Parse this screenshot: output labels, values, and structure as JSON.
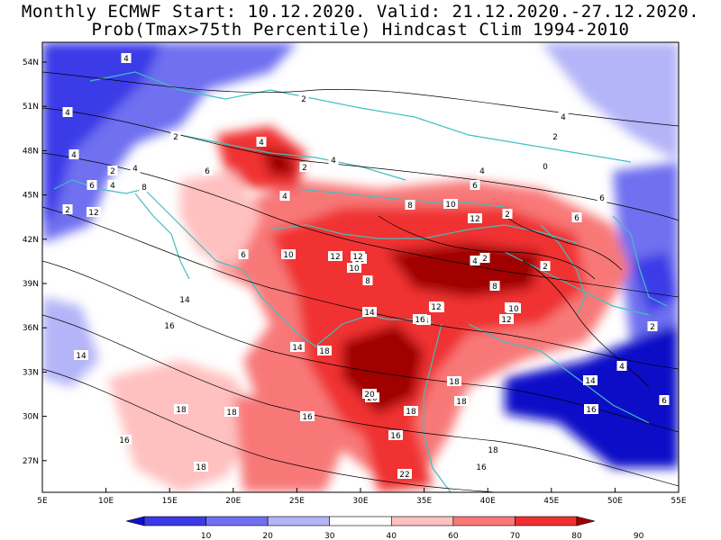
{
  "title_line1": "Monthly ECMWF Start: 10.12.2020. Valid: 21.12.2020.-27.12.2020.",
  "title_line2": "Prob(Tmax>75th Percentile) Hindcast Clim 1994-2010",
  "lon_ticks": [
    "5E",
    "10E",
    "15E",
    "20E",
    "25E",
    "30E",
    "35E",
    "40E",
    "45E",
    "50E",
    "55E"
  ],
  "lat_ticks": [
    "54N",
    "51N",
    "48N",
    "45N",
    "42N",
    "39N",
    "36N",
    "33N",
    "30N",
    "27N"
  ],
  "colorbar": {
    "ticks": [
      "10",
      "20",
      "30",
      "40",
      "60",
      "70",
      "80",
      "90"
    ],
    "colors": [
      "#1010c8",
      "#3a3ae8",
      "#7070f0",
      "#b4b4f8",
      "#ffffff",
      "#ffc0c0",
      "#f87878",
      "#f03030",
      "#a00000"
    ]
  },
  "contour_labels": [
    "4",
    "4",
    "2",
    "4",
    "2",
    "4",
    "4",
    "2",
    "4",
    "6",
    "2",
    "6",
    "4",
    "2",
    "4",
    "6",
    "4",
    "2",
    "6",
    "4",
    "0",
    "8",
    "10",
    "8",
    "12",
    "6",
    "2",
    "12",
    "6",
    "10",
    "10",
    "14",
    "10",
    "12",
    "12",
    "12",
    "8",
    "4",
    "2",
    "2",
    "10",
    "8",
    "14",
    "14",
    "16",
    "14",
    "12",
    "16",
    "12",
    "10",
    "16",
    "14",
    "14",
    "6",
    "4",
    "2",
    "16",
    "16",
    "20",
    "18",
    "18",
    "18",
    "16",
    "18",
    "16",
    "18",
    "18",
    "22",
    "18",
    "20",
    "18"
  ],
  "colors": {
    "land_line": "#40c0c0",
    "contour": "#000000"
  }
}
